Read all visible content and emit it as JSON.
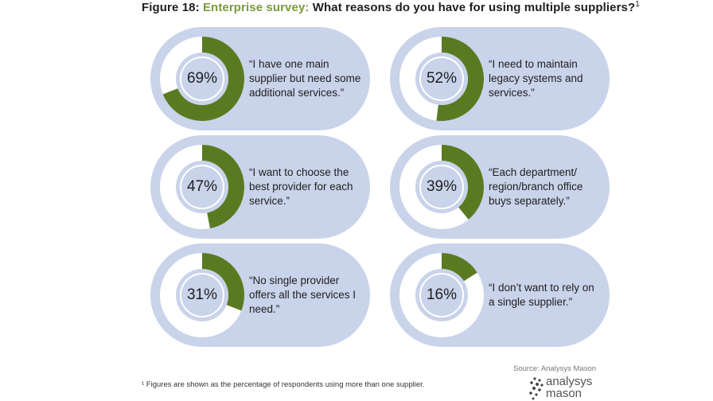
{
  "title": {
    "figure": "Figure 18: ",
    "survey": "Enterprise survey:",
    "question": " What reasons do you have for using multiple suppliers?",
    "sup": "1"
  },
  "chart_data": {
    "type": "pie",
    "title": "Figure 18: Enterprise survey: What reasons do you have for using multiple suppliers?",
    "items": [
      {
        "value": 69,
        "label": "69%",
        "quote": "“I have one main supplier but need some additional services.”"
      },
      {
        "value": 52,
        "label": "52%",
        "quote": "“I need to maintain legacy systems and services.”"
      },
      {
        "value": 47,
        "label": "47%",
        "quote": "“I want to choose the best provider for each service.”"
      },
      {
        "value": 39,
        "label": "39%",
        "quote": "“Each department/ region/branch office buys separately.”"
      },
      {
        "value": 31,
        "label": "31%",
        "quote": "“No single provider offers all the services I need.”"
      },
      {
        "value": 16,
        "label": "16%",
        "quote": "“I don’t want to rely on a single supplier.”"
      }
    ]
  },
  "colors": {
    "card": "#c9d3ea",
    "fill": "#5a7a22",
    "track": "#ffffff",
    "accent": "#7a9a3a"
  },
  "footnote": "¹ Figures are shown as the percentage of respondents using more than one supplier.",
  "source": "Source: Analysys Mason",
  "logo": {
    "line1": "analysys",
    "line2": "mason"
  }
}
